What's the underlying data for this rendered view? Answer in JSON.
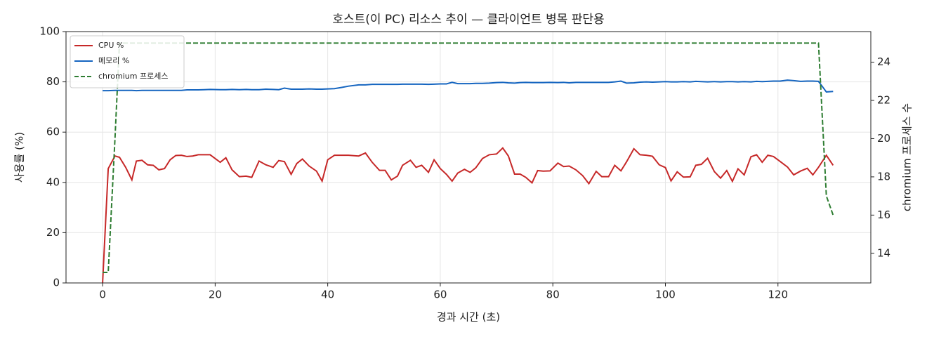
{
  "chart_data": {
    "type": "line",
    "title": "호스트(이 PC) 리소스 추이 — 클라이언트 병목 판단용",
    "x_label": "경과 시간 (초)",
    "y_label": "사용률 (%)",
    "y2_label": "chromium 프로세스 수",
    "x": [
      0,
      1,
      2.2,
      3,
      4.1,
      5.2,
      6,
      7,
      8,
      9,
      10,
      11,
      12,
      13,
      14,
      15,
      16,
      17,
      18,
      19.1,
      20.9,
      21.9,
      23,
      24.3,
      25.5,
      26.5,
      27.8,
      29,
      30.3,
      31.3,
      32.3,
      33.5,
      34.5,
      35.5,
      36.7,
      38,
      39,
      40,
      41.2,
      42.5,
      43.7,
      45.5,
      46.7,
      47.9,
      49.2,
      50.2,
      51.3,
      52.4,
      53.3,
      54.7,
      55.7,
      56.7,
      57.9,
      58.9,
      60,
      61.1,
      62.1,
      63.1,
      64.3,
      65.3,
      66.3,
      67.5,
      68.7,
      70,
      71.1,
      72.1,
      73.2,
      74.2,
      75.2,
      76.3,
      77.3,
      78.3,
      79.5,
      80.9,
      81.9,
      82.9,
      84.1,
      85.3,
      86.4,
      87.7,
      88.7,
      89.9,
      91,
      92.1,
      93.1,
      94.4,
      95.5,
      96.6,
      97.7,
      98.9,
      100,
      101,
      102.1,
      103.2,
      104.4,
      105.4,
      106.4,
      107.5,
      108.7,
      109.8,
      110.9,
      111.9,
      112.9,
      114,
      115.2,
      116.2,
      117.2,
      118.2,
      119.2,
      120.4,
      121.7,
      122.8,
      124,
      125.2,
      126.2,
      127.2,
      128.6,
      129.8
    ],
    "series": [
      {
        "name": "CPU %",
        "color": "#c62828",
        "linestyle": "solid",
        "axis": "y",
        "values": [
          0,
          45.5,
          50.5,
          50,
          46,
          41,
          48.5,
          48.8,
          47,
          46.8,
          45,
          45.5,
          49,
          50.7,
          50.8,
          50.3,
          50.5,
          51,
          51,
          51,
          48,
          49.8,
          45,
          42.3,
          42.5,
          42,
          48.5,
          47,
          46,
          48.7,
          48.3,
          43.2,
          47.5,
          49.3,
          46.5,
          44.5,
          40.5,
          49,
          50.8,
          50.8,
          50.8,
          50.5,
          51.7,
          48,
          44.8,
          44.8,
          41,
          42.5,
          46.8,
          48.8,
          46,
          46.8,
          44,
          49,
          45.5,
          43.2,
          40.5,
          43.7,
          45.2,
          44,
          45.8,
          49.5,
          51,
          51.3,
          53.7,
          50.5,
          43.3,
          43.3,
          42,
          39.8,
          44.7,
          44.5,
          44.6,
          47.7,
          46.3,
          46.5,
          45,
          42.7,
          39.5,
          44.4,
          42.3,
          42.3,
          46.8,
          44.6,
          48.2,
          53.4,
          51,
          50.8,
          50.4,
          47,
          45.9,
          40.6,
          44.2,
          42.1,
          42.2,
          46.8,
          47.2,
          49.6,
          44.3,
          41.7,
          44.7,
          40.4,
          45.4,
          43,
          50.2,
          51,
          48,
          50.8,
          50.3,
          48.3,
          46.1,
          43,
          44.5,
          45.6,
          43,
          46,
          50.8,
          46.8
        ]
      },
      {
        "name": "메모리 %",
        "color": "#1565c0",
        "linestyle": "solid",
        "axis": "y",
        "values": [
          76.5,
          76.5,
          76.6,
          76.6,
          76.6,
          76.6,
          76.5,
          76.6,
          76.6,
          76.6,
          76.6,
          76.6,
          76.6,
          76.6,
          76.6,
          76.8,
          76.8,
          76.8,
          76.9,
          77,
          76.9,
          76.9,
          77,
          76.9,
          77,
          76.9,
          76.9,
          77.1,
          77,
          76.9,
          77.5,
          77.1,
          77.1,
          77.1,
          77.2,
          77.1,
          77.1,
          77.2,
          77.3,
          77.8,
          78.3,
          78.8,
          78.8,
          79,
          79,
          79,
          79,
          79,
          79.1,
          79.1,
          79.1,
          79.1,
          79,
          79.1,
          79.2,
          79.2,
          79.8,
          79.3,
          79.3,
          79.3,
          79.4,
          79.4,
          79.5,
          79.7,
          79.8,
          79.6,
          79.5,
          79.7,
          79.8,
          79.7,
          79.7,
          79.7,
          79.8,
          79.7,
          79.8,
          79.6,
          79.8,
          79.8,
          79.8,
          79.8,
          79.8,
          79.8,
          80,
          80.3,
          79.5,
          79.6,
          79.9,
          80,
          79.9,
          80,
          80.1,
          80,
          80,
          80.1,
          80,
          80.2,
          80.1,
          80,
          80.1,
          80,
          80.1,
          80.1,
          80,
          80.1,
          80,
          80.2,
          80.1,
          80.2,
          80.3,
          80.3,
          80.7,
          80.5,
          80.2,
          80.3,
          80.3,
          80.2,
          76,
          76.2
        ]
      },
      {
        "name": "chromium 프로세스",
        "color": "#2e7d32",
        "linestyle": "dashed",
        "axis": "y2",
        "values": [
          13,
          13,
          20,
          25,
          25,
          25,
          25,
          25,
          25,
          25,
          25,
          25,
          25,
          25,
          25,
          25,
          25,
          25,
          25,
          25,
          25,
          25,
          25,
          25,
          25,
          25,
          25,
          25,
          25,
          25,
          25,
          25,
          25,
          25,
          25,
          25,
          25,
          25,
          25,
          25,
          25,
          25,
          25,
          25,
          25,
          25,
          25,
          25,
          25,
          25,
          25,
          25,
          25,
          25,
          25,
          25,
          25,
          25,
          25,
          25,
          25,
          25,
          25,
          25,
          25,
          25,
          25,
          25,
          25,
          25,
          25,
          25,
          25,
          25,
          25,
          25,
          25,
          25,
          25,
          25,
          25,
          25,
          25,
          25,
          25,
          25,
          25,
          25,
          25,
          25,
          25,
          25,
          25,
          25,
          25,
          25,
          25,
          25,
          25,
          25,
          25,
          25,
          25,
          25,
          25,
          25,
          25,
          25,
          25,
          25,
          25,
          25,
          25,
          25,
          25,
          25,
          17,
          16
        ]
      }
    ],
    "xlim": [
      -6.5,
      136.5
    ],
    "xticks": [
      0,
      20,
      40,
      60,
      80,
      100,
      120
    ],
    "ylim": [
      0,
      100
    ],
    "yticks": [
      0,
      20,
      40,
      60,
      80,
      100
    ],
    "y2lim": [
      12.45,
      25.6
    ],
    "y2ticks": [
      14,
      16,
      18,
      20,
      22,
      24
    ],
    "grid": true,
    "legend": "upper-left"
  }
}
